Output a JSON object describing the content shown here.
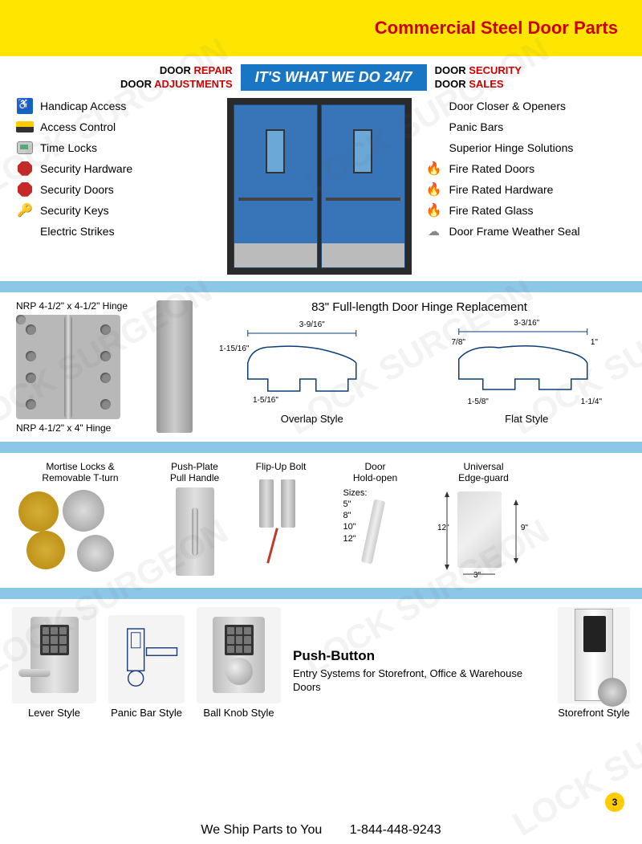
{
  "header": {
    "title": "Commercial Steel Door Parts"
  },
  "tagline": {
    "left_line1_pre": "DOOR ",
    "left_line1_em": "REPAIR",
    "left_line2_pre": "DOOR ",
    "left_line2_em": "ADJUSTMENTS",
    "center": "IT'S WHAT WE DO 24/7",
    "right_line1_pre": "DOOR ",
    "right_line1_em": "SECURITY",
    "right_line2_pre": "DOOR ",
    "right_line2_em": "SALES"
  },
  "features_left": [
    {
      "icon": "wheelchair",
      "label": "Handicap Access"
    },
    {
      "icon": "card",
      "label": "Access Control"
    },
    {
      "icon": "timer",
      "label": "Time Locks"
    },
    {
      "icon": "octagon",
      "label": "Security Hardware"
    },
    {
      "icon": "octagon",
      "label": "Security Doors"
    },
    {
      "icon": "key",
      "label": "Security Keys"
    },
    {
      "icon": "blank",
      "label": "Electric Strikes"
    }
  ],
  "features_right": [
    {
      "icon": "blank",
      "label": "Door Closer & Openers"
    },
    {
      "icon": "blank",
      "label": "Panic Bars"
    },
    {
      "icon": "blank",
      "label": "Superior Hinge Solutions"
    },
    {
      "icon": "flame",
      "label": "Fire Rated Doors"
    },
    {
      "icon": "flame",
      "label": "Fire Rated Hardware"
    },
    {
      "icon": "flame",
      "label": "Fire Rated Glass"
    },
    {
      "icon": "cloud",
      "label": "Door Frame Weather Seal"
    }
  ],
  "hinges": {
    "label_top": "NRP 4-1/2\" x 4-1/2\" Hinge",
    "label_bottom": "NRP 4-1/2\" x 4\" Hinge",
    "right_title": "83\" Full-length Door Hinge Replacement",
    "overlap_label": "Overlap Style",
    "flat_label": "Flat Style",
    "dims_overlap": {
      "top": "3-9/16\"",
      "left": "1-15/16\"",
      "bottom": "1-5/16\""
    },
    "dims_flat": {
      "top": "3-3/16\"",
      "l1": "7/8\"",
      "l2": "1\"",
      "b1": "1-5/8\"",
      "b2": "1-1/4\""
    }
  },
  "products": {
    "mortise": "Mortise Locks &\nRemovable T-turn",
    "pushplate": "Push-Plate\nPull Handle",
    "flipbolt": "Flip-Up Bolt",
    "holdopen": "Door\nHold-open",
    "holdopen_sizes_label": "Sizes:",
    "holdopen_sizes": [
      "5\"",
      "8\"",
      "10\"",
      "12\""
    ],
    "edgeguard": "Universal\nEdge-guard",
    "edgeguard_dims": {
      "h1": "12\"",
      "h2": "9\"",
      "w": "3\""
    }
  },
  "pushbutton": {
    "heading": "Push-Button",
    "desc": "Entry Systems for Storefront, Office & Warehouse Doors",
    "styles": [
      {
        "label": "Lever Style"
      },
      {
        "label": "Panic Bar Style"
      },
      {
        "label": "Ball Knob Style"
      },
      {
        "label": "Storefront Style"
      }
    ]
  },
  "footer": {
    "ship": "We Ship Parts to You",
    "phone": "1-844-448-9243"
  },
  "page_number": "3",
  "watermark_text": "LOCK SURGEON",
  "colors": {
    "yellow": "#ffe600",
    "red": "#c00",
    "blue_banner": "#1976c5",
    "divider": "#8cc7e8",
    "door_blue": "#3874b8",
    "badge": "#ffcc00"
  }
}
